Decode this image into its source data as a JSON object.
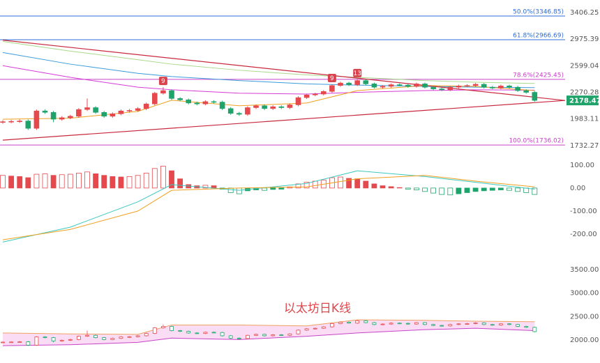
{
  "chart_data": [
    {
      "type": "candlestick",
      "log": true,
      "ylim": [
        1653,
        3631
      ],
      "yticks": [
        3406.25,
        2975.39,
        2599.04,
        2270.28,
        1983.11,
        1732.27
      ],
      "up_color": "#e5484d",
      "down_color": "#1fa36b",
      "open": [
        1950,
        1955,
        1958,
        1962,
        1890,
        2065,
        2050,
        1980,
        1995,
        2010,
        2080,
        2100,
        2050,
        2010,
        2035,
        2065,
        2070,
        2090,
        2140,
        2260,
        2290,
        2200,
        2185,
        2150,
        2140,
        2165,
        2160,
        2090,
        2040,
        2030,
        2100,
        2120,
        2090,
        2110,
        2100,
        2130,
        2210,
        2240,
        2250,
        2280,
        2350,
        2380,
        2360,
        2410,
        2370,
        2330,
        2340,
        2360,
        2355,
        2340,
        2370,
        2330,
        2310,
        2300,
        2330,
        2345,
        2350,
        2365,
        2330,
        2320,
        2345,
        2330,
        2290,
        2270
      ],
      "high": [
        1970,
        1973,
        1977,
        1977,
        2080,
        2080,
        2065,
        2010,
        2025,
        2095,
        2200,
        2115,
        2065,
        2050,
        2080,
        2085,
        2105,
        2155,
        2275,
        2330,
        2305,
        2215,
        2200,
        2165,
        2180,
        2180,
        2175,
        2105,
        2055,
        2115,
        2135,
        2135,
        2125,
        2125,
        2145,
        2225,
        2255,
        2265,
        2295,
        2365,
        2395,
        2395,
        2425,
        2425,
        2385,
        2355,
        2375,
        2375,
        2370,
        2385,
        2385,
        2345,
        2325,
        2345,
        2360,
        2365,
        2380,
        2380,
        2345,
        2360,
        2360,
        2345,
        2305,
        2285
      ],
      "low": [
        1935,
        1940,
        1943,
        1875,
        1875,
        2035,
        1950,
        1965,
        1980,
        1995,
        2065,
        2035,
        1995,
        1995,
        2020,
        2050,
        2055,
        2075,
        2125,
        2245,
        2185,
        2170,
        2135,
        2125,
        2125,
        2145,
        2075,
        2025,
        2015,
        2015,
        2085,
        2075,
        2075,
        2085,
        2085,
        2115,
        2195,
        2225,
        2235,
        2265,
        2335,
        2345,
        2345,
        2355,
        2315,
        2315,
        2325,
        2340,
        2325,
        2325,
        2315,
        2295,
        2285,
        2285,
        2315,
        2330,
        2335,
        2315,
        2305,
        2305,
        2315,
        2275,
        2255,
        2165
      ],
      "close": [
        1955,
        1958,
        1962,
        1890,
        2065,
        2050,
        1980,
        1995,
        2010,
        2080,
        2100,
        2050,
        2010,
        2035,
        2065,
        2070,
        2090,
        2140,
        2260,
        2290,
        2200,
        2185,
        2150,
        2140,
        2165,
        2160,
        2090,
        2040,
        2030,
        2100,
        2120,
        2090,
        2110,
        2100,
        2130,
        2210,
        2240,
        2250,
        2280,
        2350,
        2380,
        2360,
        2410,
        2370,
        2330,
        2340,
        2360,
        2355,
        2340,
        2370,
        2330,
        2310,
        2300,
        2330,
        2345,
        2350,
        2365,
        2330,
        2320,
        2345,
        2330,
        2290,
        2270,
        2178.47
      ],
      "series": [
        {
          "color": "#a8d98a",
          "index": [
            0,
            8,
            16,
            20,
            28,
            36,
            42,
            50,
            56,
            63
          ],
          "values": [
            2940,
            2800,
            2680,
            2620,
            2540,
            2480,
            2450,
            2410,
            2390,
            2375
          ]
        },
        {
          "color": "#3a9ad9",
          "index": [
            0,
            8,
            16,
            20,
            28,
            36,
            42,
            50,
            56,
            63
          ],
          "values": [
            2780,
            2620,
            2500,
            2460,
            2410,
            2370,
            2355,
            2340,
            2330,
            2325
          ]
        },
        {
          "color": "#d63ad6",
          "index": [
            0,
            8,
            16,
            20,
            28,
            36,
            42,
            50,
            56,
            63
          ],
          "values": [
            2600,
            2450,
            2330,
            2300,
            2260,
            2250,
            2270,
            2290,
            2300,
            2295
          ]
        },
        {
          "color": "#f0a020",
          "index": [
            0,
            8,
            16,
            20,
            28,
            36,
            42,
            50,
            56,
            63
          ],
          "values": [
            1980,
            1990,
            2060,
            2180,
            2120,
            2150,
            2290,
            2350,
            2340,
            2290
          ]
        }
      ],
      "levels": [
        {
          "value": 3346.85,
          "label": "50.0%(3346.85)",
          "color": "#2e6bd6"
        },
        {
          "value": 2966.69,
          "label": "61.8%(2966.69)",
          "color": "#2e6bd6"
        },
        {
          "value": 2425.45,
          "label": "78.6%(2425.45)",
          "color": "#c843c8"
        },
        {
          "value": 1736.02,
          "label": "100.0%(1736.02)",
          "color": "#c843c8"
        }
      ],
      "markers": [
        {
          "index": 19,
          "label": "9"
        },
        {
          "index": 39,
          "label": "9"
        },
        {
          "index": 42,
          "label": "13"
        }
      ],
      "trendlines": [
        [
          [
            0,
            2960
          ],
          [
            66.6,
            2178
          ]
        ],
        [
          [
            0,
            1780
          ],
          [
            66.6,
            2178
          ]
        ]
      ],
      "trend_color": "#c8283c"
    },
    {
      "type": "macd",
      "ylim": [
        -258,
        136
      ],
      "yticks": [
        {
          "value": 100,
          "label": "100.00"
        },
        {
          "value": 0,
          "label": "0.00"
        },
        {
          "value": -100,
          "label": "-100.00"
        },
        {
          "value": -200,
          "label": "-200.00"
        }
      ],
      "values": [
        55,
        52,
        50,
        45,
        60,
        62,
        55,
        58,
        60,
        65,
        70,
        62,
        55,
        50,
        48,
        50,
        55,
        65,
        85,
        95,
        75,
        40,
        15,
        10,
        12,
        10,
        -5,
        -20,
        -25,
        -12,
        -8,
        -10,
        -6,
        -5,
        5,
        18,
        25,
        30,
        35,
        45,
        48,
        42,
        40,
        30,
        18,
        10,
        6,
        2,
        -5,
        -8,
        -15,
        -22,
        -28,
        -30,
        -25,
        -20,
        -15,
        -12,
        -10,
        -8,
        -10,
        -15,
        -20,
        -28
      ],
      "up_color": "#e5484d",
      "down_color": "#1fa36b",
      "series": [
        {
          "color": "#3cc8c0",
          "index": [
            0,
            8,
            16,
            20,
            28,
            36,
            42,
            50,
            56,
            63
          ],
          "values": [
            -235,
            -170,
            -60,
            15,
            -10,
            20,
            75,
            50,
            25,
            -5
          ]
        },
        {
          "color": "#f0a020",
          "index": [
            0,
            8,
            16,
            20,
            28,
            36,
            42,
            50,
            56,
            63
          ],
          "values": [
            -225,
            -180,
            -100,
            -10,
            0,
            5,
            40,
            55,
            30,
            5
          ]
        }
      ]
    },
    {
      "type": "overview",
      "ylim": [
        1510,
        3752
      ],
      "title": "以太坊日K线",
      "yticks": [
        {
          "value": 3500,
          "label": "3500.00"
        },
        {
          "value": 3000,
          "label": "3000.00"
        },
        {
          "value": 2500,
          "label": "2500.00"
        },
        {
          "value": 2000,
          "label": "2000.00"
        }
      ],
      "band": {
        "color": "#f6c6ef",
        "index": [
          0,
          8,
          16,
          20,
          28,
          36,
          42,
          50,
          56,
          63
        ],
        "upper": [
          2150,
          2130,
          2120,
          2320,
          2320,
          2300,
          2430,
          2420,
          2400,
          2390
        ],
        "lower": [
          1880,
          1900,
          1950,
          2040,
          2010,
          2080,
          2150,
          2220,
          2250,
          2200
        ]
      }
    }
  ]
}
